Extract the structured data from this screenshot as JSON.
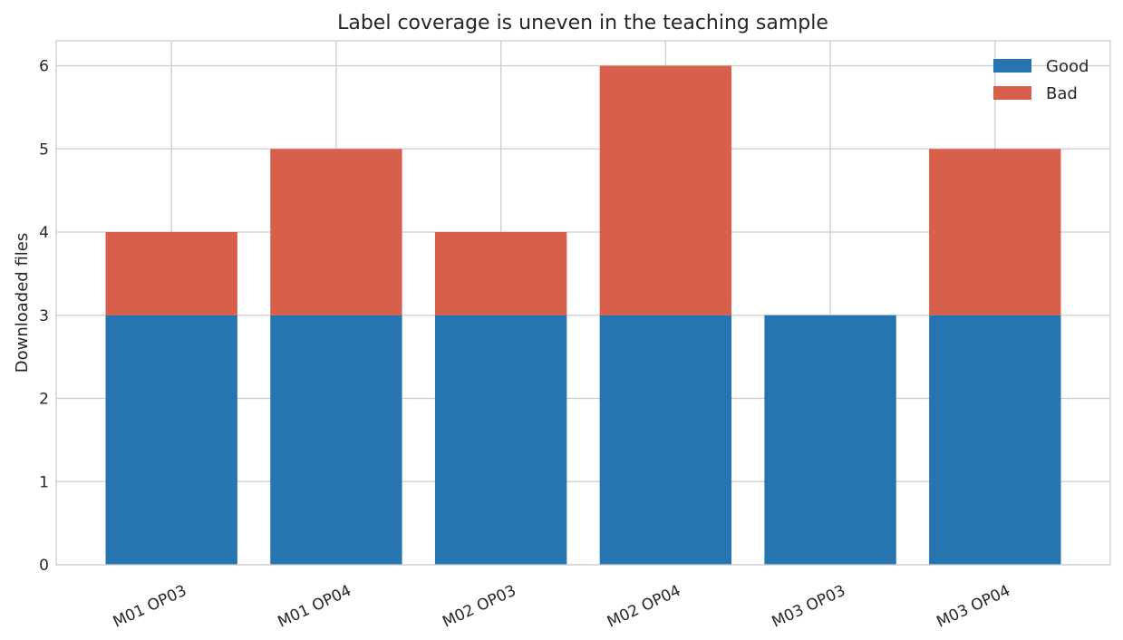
{
  "chart_data": {
    "type": "bar",
    "stacked": true,
    "title": "Label coverage is uneven in the teaching sample",
    "xlabel": "",
    "ylabel": "Downloaded files",
    "categories": [
      "M01 OP03",
      "M01 OP04",
      "M02 OP03",
      "M02 OP04",
      "M03 OP03",
      "M03 OP04"
    ],
    "series": [
      {
        "name": "Good",
        "color": "#2775b0",
        "values": [
          3,
          3,
          3,
          3,
          3,
          3
        ]
      },
      {
        "name": "Bad",
        "color": "#d75f4b",
        "values": [
          1,
          2,
          1,
          3,
          0,
          2
        ]
      }
    ],
    "ylim": [
      0,
      6.3
    ],
    "yticks": [
      0,
      1,
      2,
      3,
      4,
      5,
      6
    ],
    "grid": true,
    "legend_position": "top-right"
  }
}
